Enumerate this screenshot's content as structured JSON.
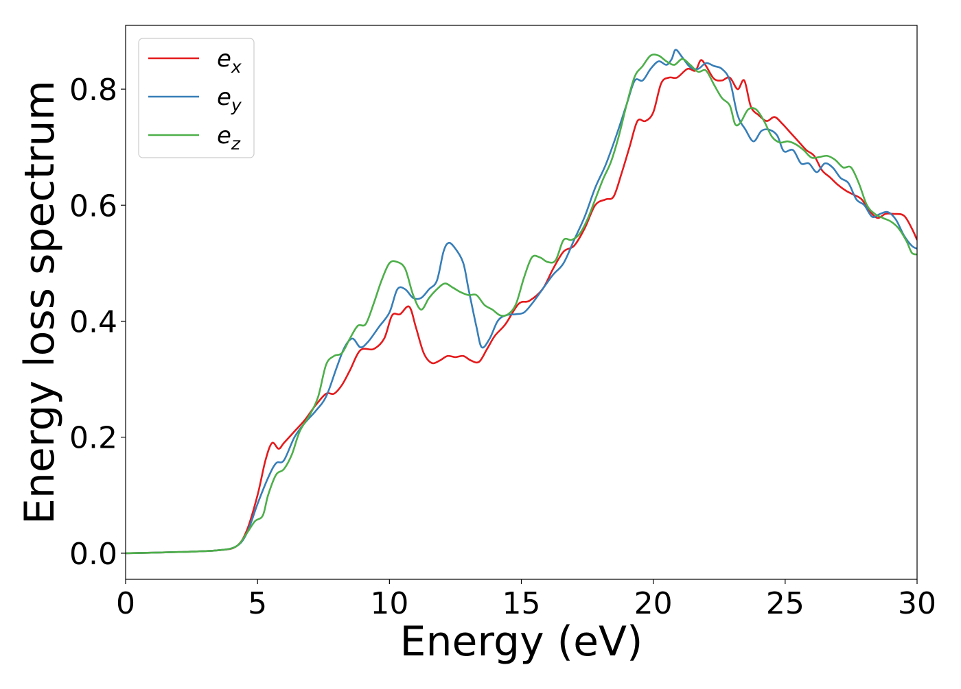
{
  "chart_data": {
    "type": "line",
    "title": "",
    "xlabel": "Energy (eV)",
    "ylabel": "Energy loss spectrum",
    "xlim": [
      0,
      30
    ],
    "ylim": [
      -0.045,
      0.91
    ],
    "x_ticks": [
      0,
      5,
      10,
      15,
      20,
      25,
      30
    ],
    "x_tick_labels": [
      "0",
      "5",
      "10",
      "15",
      "20",
      "25",
      "30"
    ],
    "y_ticks": [
      0.0,
      0.2,
      0.4,
      0.6,
      0.8
    ],
    "y_tick_labels": [
      "0.0",
      "0.2",
      "0.4",
      "0.6",
      "0.8"
    ],
    "grid": false,
    "legend_position": "top-left",
    "series": [
      {
        "name": "e_x",
        "legend_base": "e",
        "legend_sub": "x",
        "color": "#e41a1c",
        "points": [
          [
            0,
            0
          ],
          [
            2,
            0.002
          ],
          [
            3.5,
            0.005
          ],
          [
            4.2,
            0.012
          ],
          [
            4.6,
            0.04
          ],
          [
            5.0,
            0.1
          ],
          [
            5.3,
            0.16
          ],
          [
            5.55,
            0.19
          ],
          [
            5.8,
            0.18
          ],
          [
            6.0,
            0.19
          ],
          [
            6.4,
            0.21
          ],
          [
            6.8,
            0.23
          ],
          [
            7.2,
            0.255
          ],
          [
            7.6,
            0.275
          ],
          [
            7.9,
            0.275
          ],
          [
            8.2,
            0.29
          ],
          [
            8.5,
            0.315
          ],
          [
            8.9,
            0.35
          ],
          [
            9.4,
            0.352
          ],
          [
            9.8,
            0.37
          ],
          [
            10.1,
            0.41
          ],
          [
            10.4,
            0.412
          ],
          [
            10.75,
            0.425
          ],
          [
            11.0,
            0.39
          ],
          [
            11.3,
            0.345
          ],
          [
            11.6,
            0.328
          ],
          [
            11.9,
            0.332
          ],
          [
            12.2,
            0.34
          ],
          [
            12.5,
            0.338
          ],
          [
            12.8,
            0.34
          ],
          [
            13.1,
            0.332
          ],
          [
            13.4,
            0.33
          ],
          [
            13.7,
            0.352
          ],
          [
            14.0,
            0.375
          ],
          [
            14.4,
            0.395
          ],
          [
            14.9,
            0.43
          ],
          [
            15.3,
            0.435
          ],
          [
            15.8,
            0.455
          ],
          [
            16.2,
            0.49
          ],
          [
            16.6,
            0.52
          ],
          [
            17.0,
            0.53
          ],
          [
            17.4,
            0.56
          ],
          [
            17.8,
            0.6
          ],
          [
            18.2,
            0.61
          ],
          [
            18.5,
            0.615
          ],
          [
            18.8,
            0.655
          ],
          [
            19.1,
            0.7
          ],
          [
            19.4,
            0.745
          ],
          [
            19.7,
            0.745
          ],
          [
            20.0,
            0.76
          ],
          [
            20.3,
            0.81
          ],
          [
            20.6,
            0.82
          ],
          [
            20.9,
            0.82
          ],
          [
            21.3,
            0.835
          ],
          [
            21.6,
            0.832
          ],
          [
            21.8,
            0.85
          ],
          [
            22.0,
            0.84
          ],
          [
            22.3,
            0.818
          ],
          [
            22.6,
            0.815
          ],
          [
            22.9,
            0.82
          ],
          [
            23.2,
            0.8
          ],
          [
            23.45,
            0.815
          ],
          [
            23.7,
            0.77
          ],
          [
            24.0,
            0.755
          ],
          [
            24.3,
            0.745
          ],
          [
            24.6,
            0.752
          ],
          [
            24.9,
            0.74
          ],
          [
            25.2,
            0.725
          ],
          [
            25.5,
            0.71
          ],
          [
            25.8,
            0.695
          ],
          [
            26.1,
            0.685
          ],
          [
            26.4,
            0.66
          ],
          [
            26.7,
            0.648
          ],
          [
            27.0,
            0.635
          ],
          [
            27.3,
            0.625
          ],
          [
            27.6,
            0.618
          ],
          [
            27.9,
            0.61
          ],
          [
            28.2,
            0.59
          ],
          [
            28.5,
            0.578
          ],
          [
            28.8,
            0.585
          ],
          [
            29.1,
            0.585
          ],
          [
            29.5,
            0.582
          ],
          [
            29.8,
            0.56
          ],
          [
            30.0,
            0.54
          ]
        ]
      },
      {
        "name": "e_y",
        "legend_base": "e",
        "legend_sub": "y",
        "color": "#377eb8",
        "points": [
          [
            0,
            0
          ],
          [
            2,
            0.002
          ],
          [
            3.5,
            0.005
          ],
          [
            4.2,
            0.012
          ],
          [
            4.6,
            0.035
          ],
          [
            5.0,
            0.085
          ],
          [
            5.4,
            0.13
          ],
          [
            5.7,
            0.155
          ],
          [
            6.0,
            0.16
          ],
          [
            6.4,
            0.2
          ],
          [
            6.8,
            0.225
          ],
          [
            7.2,
            0.245
          ],
          [
            7.6,
            0.27
          ],
          [
            8.0,
            0.32
          ],
          [
            8.3,
            0.355
          ],
          [
            8.6,
            0.37
          ],
          [
            8.9,
            0.355
          ],
          [
            9.2,
            0.365
          ],
          [
            9.6,
            0.39
          ],
          [
            10.0,
            0.415
          ],
          [
            10.3,
            0.455
          ],
          [
            10.6,
            0.455
          ],
          [
            10.9,
            0.44
          ],
          [
            11.2,
            0.44
          ],
          [
            11.5,
            0.455
          ],
          [
            11.8,
            0.47
          ],
          [
            12.05,
            0.52
          ],
          [
            12.25,
            0.535
          ],
          [
            12.5,
            0.525
          ],
          [
            12.8,
            0.5
          ],
          [
            13.0,
            0.455
          ],
          [
            13.3,
            0.39
          ],
          [
            13.5,
            0.355
          ],
          [
            13.8,
            0.37
          ],
          [
            14.1,
            0.4
          ],
          [
            14.4,
            0.41
          ],
          [
            14.8,
            0.412
          ],
          [
            15.1,
            0.415
          ],
          [
            15.4,
            0.43
          ],
          [
            15.8,
            0.455
          ],
          [
            16.2,
            0.48
          ],
          [
            16.6,
            0.5
          ],
          [
            17.0,
            0.54
          ],
          [
            17.4,
            0.58
          ],
          [
            17.8,
            0.63
          ],
          [
            18.2,
            0.67
          ],
          [
            18.6,
            0.72
          ],
          [
            19.0,
            0.775
          ],
          [
            19.3,
            0.815
          ],
          [
            19.6,
            0.815
          ],
          [
            19.9,
            0.835
          ],
          [
            20.2,
            0.848
          ],
          [
            20.5,
            0.842
          ],
          [
            20.7,
            0.852
          ],
          [
            20.85,
            0.868
          ],
          [
            21.1,
            0.855
          ],
          [
            21.4,
            0.838
          ],
          [
            21.7,
            0.835
          ],
          [
            22.0,
            0.845
          ],
          [
            22.3,
            0.84
          ],
          [
            22.6,
            0.835
          ],
          [
            22.9,
            0.815
          ],
          [
            23.2,
            0.755
          ],
          [
            23.5,
            0.73
          ],
          [
            23.8,
            0.71
          ],
          [
            24.1,
            0.728
          ],
          [
            24.4,
            0.73
          ],
          [
            24.7,
            0.72
          ],
          [
            24.95,
            0.693
          ],
          [
            25.3,
            0.695
          ],
          [
            25.6,
            0.672
          ],
          [
            25.9,
            0.672
          ],
          [
            26.2,
            0.657
          ],
          [
            26.5,
            0.672
          ],
          [
            26.8,
            0.665
          ],
          [
            27.1,
            0.647
          ],
          [
            27.4,
            0.638
          ],
          [
            27.7,
            0.61
          ],
          [
            28.0,
            0.6
          ],
          [
            28.3,
            0.58
          ],
          [
            28.6,
            0.585
          ],
          [
            28.9,
            0.588
          ],
          [
            29.2,
            0.575
          ],
          [
            29.5,
            0.548
          ],
          [
            29.8,
            0.53
          ],
          [
            30.0,
            0.525
          ]
        ]
      },
      {
        "name": "e_z",
        "legend_base": "e",
        "legend_sub": "z",
        "color": "#4daf4a",
        "points": [
          [
            0,
            0
          ],
          [
            2,
            0.002
          ],
          [
            3.5,
            0.005
          ],
          [
            4.2,
            0.012
          ],
          [
            4.6,
            0.035
          ],
          [
            4.9,
            0.055
          ],
          [
            5.2,
            0.065
          ],
          [
            5.4,
            0.1
          ],
          [
            5.7,
            0.135
          ],
          [
            6.0,
            0.145
          ],
          [
            6.3,
            0.17
          ],
          [
            6.6,
            0.21
          ],
          [
            7.0,
            0.24
          ],
          [
            7.3,
            0.27
          ],
          [
            7.6,
            0.325
          ],
          [
            7.9,
            0.34
          ],
          [
            8.2,
            0.345
          ],
          [
            8.5,
            0.37
          ],
          [
            8.8,
            0.392
          ],
          [
            9.1,
            0.395
          ],
          [
            9.4,
            0.43
          ],
          [
            9.7,
            0.47
          ],
          [
            10.0,
            0.5
          ],
          [
            10.3,
            0.502
          ],
          [
            10.6,
            0.49
          ],
          [
            10.9,
            0.445
          ],
          [
            11.2,
            0.42
          ],
          [
            11.5,
            0.44
          ],
          [
            11.8,
            0.455
          ],
          [
            12.1,
            0.465
          ],
          [
            12.4,
            0.458
          ],
          [
            12.7,
            0.45
          ],
          [
            13.0,
            0.445
          ],
          [
            13.3,
            0.445
          ],
          [
            13.6,
            0.428
          ],
          [
            13.9,
            0.42
          ],
          [
            14.2,
            0.41
          ],
          [
            14.5,
            0.412
          ],
          [
            14.8,
            0.43
          ],
          [
            15.1,
            0.475
          ],
          [
            15.4,
            0.51
          ],
          [
            15.7,
            0.51
          ],
          [
            16.0,
            0.502
          ],
          [
            16.3,
            0.505
          ],
          [
            16.6,
            0.54
          ],
          [
            16.9,
            0.54
          ],
          [
            17.2,
            0.55
          ],
          [
            17.5,
            0.575
          ],
          [
            17.8,
            0.61
          ],
          [
            18.1,
            0.645
          ],
          [
            18.4,
            0.675
          ],
          [
            18.7,
            0.72
          ],
          [
            19.0,
            0.775
          ],
          [
            19.3,
            0.822
          ],
          [
            19.6,
            0.84
          ],
          [
            19.9,
            0.858
          ],
          [
            20.2,
            0.858
          ],
          [
            20.5,
            0.848
          ],
          [
            20.8,
            0.842
          ],
          [
            21.1,
            0.852
          ],
          [
            21.4,
            0.842
          ],
          [
            21.7,
            0.83
          ],
          [
            22.0,
            0.832
          ],
          [
            22.3,
            0.808
          ],
          [
            22.6,
            0.785
          ],
          [
            22.9,
            0.772
          ],
          [
            23.1,
            0.74
          ],
          [
            23.3,
            0.742
          ],
          [
            23.6,
            0.765
          ],
          [
            23.9,
            0.765
          ],
          [
            24.2,
            0.745
          ],
          [
            24.5,
            0.718
          ],
          [
            24.8,
            0.708
          ],
          [
            25.1,
            0.71
          ],
          [
            25.4,
            0.705
          ],
          [
            25.7,
            0.695
          ],
          [
            26.0,
            0.682
          ],
          [
            26.3,
            0.683
          ],
          [
            26.6,
            0.685
          ],
          [
            26.9,
            0.678
          ],
          [
            27.2,
            0.665
          ],
          [
            27.5,
            0.665
          ],
          [
            27.8,
            0.637
          ],
          [
            28.1,
            0.6
          ],
          [
            28.4,
            0.585
          ],
          [
            28.7,
            0.578
          ],
          [
            29.0,
            0.572
          ],
          [
            29.3,
            0.56
          ],
          [
            29.6,
            0.538
          ],
          [
            29.8,
            0.518
          ],
          [
            30.0,
            0.515
          ]
        ]
      }
    ]
  }
}
